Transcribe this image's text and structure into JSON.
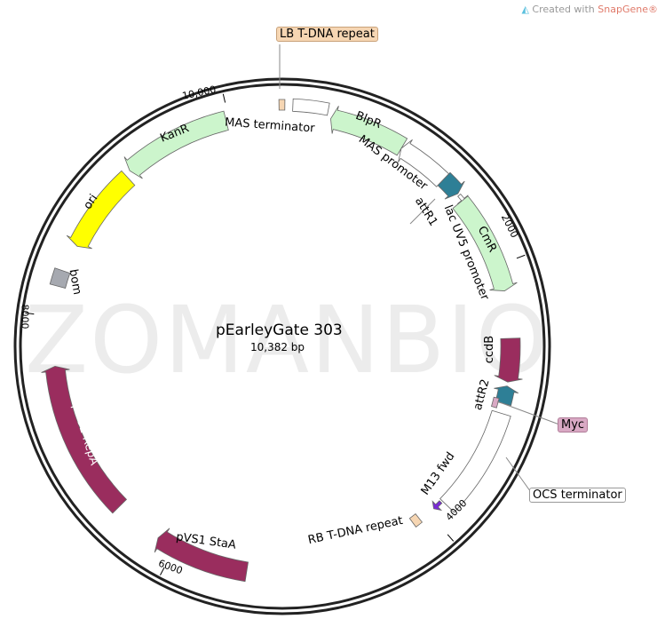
{
  "branding": {
    "prefix": "Created with ",
    "name": "SnapGene®"
  },
  "watermark": "ZOMANBIO",
  "plasmid": {
    "name": "pEarleyGate 303",
    "length": "10,382 bp"
  },
  "ticks": [
    "2000",
    "4000",
    "6000",
    "8000",
    "10,000"
  ],
  "features": [
    {
      "name": "LB T-DNA repeat",
      "color": "#f6d6b3",
      "direction": "none"
    },
    {
      "name": "MAS terminator",
      "color": "#ffffff",
      "direction": "none"
    },
    {
      "name": "BlpR",
      "color": "#ccf5cc",
      "direction": "reverse"
    },
    {
      "name": "MAS promoter",
      "color": "#ffffff",
      "direction": "reverse"
    },
    {
      "name": "attR1",
      "color": "#2e7f96",
      "direction": "forward"
    },
    {
      "name": "lac UV5 promoter",
      "color": "#ffffff",
      "direction": "forward"
    },
    {
      "name": "CmR",
      "color": "#ccf5cc",
      "direction": "forward"
    },
    {
      "name": "ccdB",
      "color": "#9a2d5e",
      "direction": "forward"
    },
    {
      "name": "attR2",
      "color": "#2e7f96",
      "direction": "reverse"
    },
    {
      "name": "Myc",
      "color": "#d9a9c4",
      "direction": "none"
    },
    {
      "name": "OCS terminator",
      "color": "#ffffff",
      "direction": "none"
    },
    {
      "name": "M13 fwd",
      "color": "#7a2bd6",
      "direction": "forward"
    },
    {
      "name": "RB T-DNA repeat",
      "color": "#f6d6b3",
      "direction": "none"
    },
    {
      "name": "pVS1 StaA",
      "color": "#9a2d5e",
      "direction": "forward"
    },
    {
      "name": "pVS1 RepA",
      "color": "#9a2d5e",
      "direction": "forward"
    },
    {
      "name": "bom",
      "color": "#a6a9b0",
      "direction": "none"
    },
    {
      "name": "ori",
      "color": "#ffff00",
      "direction": "reverse"
    },
    {
      "name": "KanR",
      "color": "#ccf5cc",
      "direction": "reverse"
    }
  ]
}
